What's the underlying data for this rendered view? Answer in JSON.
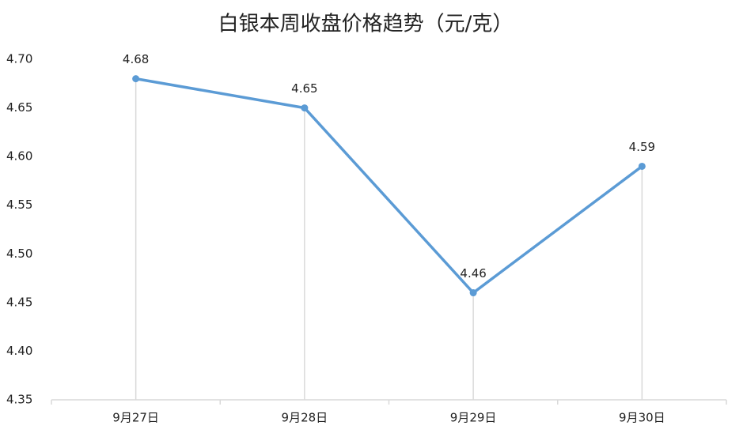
{
  "chart_data": {
    "type": "line",
    "title": "白银本周收盘价格趋势（元/克）",
    "categories": [
      "9月27日",
      "9月28日",
      "9月29日",
      "9月30日"
    ],
    "values": [
      4.68,
      4.65,
      4.46,
      4.59
    ],
    "color": "#5b9bd5",
    "ylim": [
      4.35,
      4.7
    ],
    "yticks": [
      4.35,
      {
        "value": 4.4,
        "label": "4.40"
      },
      4.45,
      {
        "value": 4.5,
        "label": "4.50"
      },
      4.55,
      {
        "value": 4.6,
        "label": "4.60"
      },
      4.65,
      {
        "value": 4.7,
        "label": "4.70"
      }
    ],
    "grid": false,
    "drop_lines": true
  }
}
